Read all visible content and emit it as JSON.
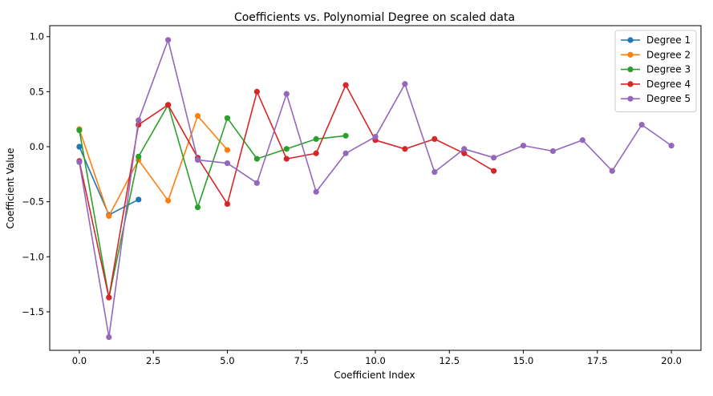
{
  "chart_data": {
    "type": "line",
    "title": "Coefficients vs. Polynomial Degree on scaled data",
    "xlabel": "Coefficient Index",
    "ylabel": "Coefficient Value",
    "xlim": [
      -1,
      21
    ],
    "ylim": [
      -1.85,
      1.1
    ],
    "xticks": [
      0.0,
      2.5,
      5.0,
      7.5,
      10.0,
      12.5,
      15.0,
      17.5,
      20.0
    ],
    "xtick_labels": [
      "0.0",
      "2.5",
      "5.0",
      "7.5",
      "10.0",
      "12.5",
      "15.0",
      "17.5",
      "20.0"
    ],
    "yticks": [
      -1.5,
      -1.0,
      -0.5,
      0.0,
      0.5,
      1.0
    ],
    "ytick_labels": [
      "−1.5",
      "−1.0",
      "−0.5",
      "0.0",
      "0.5",
      "1.0"
    ],
    "grid": false,
    "legend_position": "top-right",
    "series": [
      {
        "name": "Degree 1",
        "color": "#1f77b4",
        "x": [
          0,
          1,
          2
        ],
        "values": [
          0.0,
          -0.62,
          -0.48
        ]
      },
      {
        "name": "Degree 2",
        "color": "#ff7f0e",
        "x": [
          0,
          1,
          2,
          3,
          4,
          5
        ],
        "values": [
          0.16,
          -0.63,
          -0.12,
          -0.49,
          0.28,
          -0.03
        ]
      },
      {
        "name": "Degree 3",
        "color": "#2ca02c",
        "x": [
          0,
          1,
          2,
          3,
          4,
          5,
          6,
          7,
          8,
          9
        ],
        "values": [
          0.15,
          -1.37,
          -0.09,
          0.38,
          -0.55,
          0.26,
          -0.11,
          -0.02,
          0.07,
          0.1
        ]
      },
      {
        "name": "Degree 4",
        "color": "#d62728",
        "x": [
          0,
          1,
          2,
          3,
          4,
          5,
          6,
          7,
          8,
          9,
          10,
          11,
          12,
          13,
          14
        ],
        "values": [
          -0.13,
          -1.37,
          0.2,
          0.38,
          -0.1,
          -0.52,
          0.5,
          -0.11,
          -0.06,
          0.56,
          0.06,
          -0.02,
          0.07,
          -0.06,
          -0.22
        ]
      },
      {
        "name": "Degree 5",
        "color": "#9467bd",
        "x": [
          0,
          1,
          2,
          3,
          4,
          5,
          6,
          7,
          8,
          9,
          10,
          11,
          12,
          13,
          14,
          15,
          16,
          17,
          18,
          19,
          20
        ],
        "values": [
          -0.14,
          -1.73,
          0.24,
          0.97,
          -0.12,
          -0.15,
          -0.33,
          0.48,
          -0.41,
          -0.06,
          0.09,
          0.57,
          -0.23,
          -0.02,
          -0.1,
          0.01,
          -0.04,
          0.06,
          -0.22,
          0.2,
          0.01
        ]
      }
    ]
  }
}
